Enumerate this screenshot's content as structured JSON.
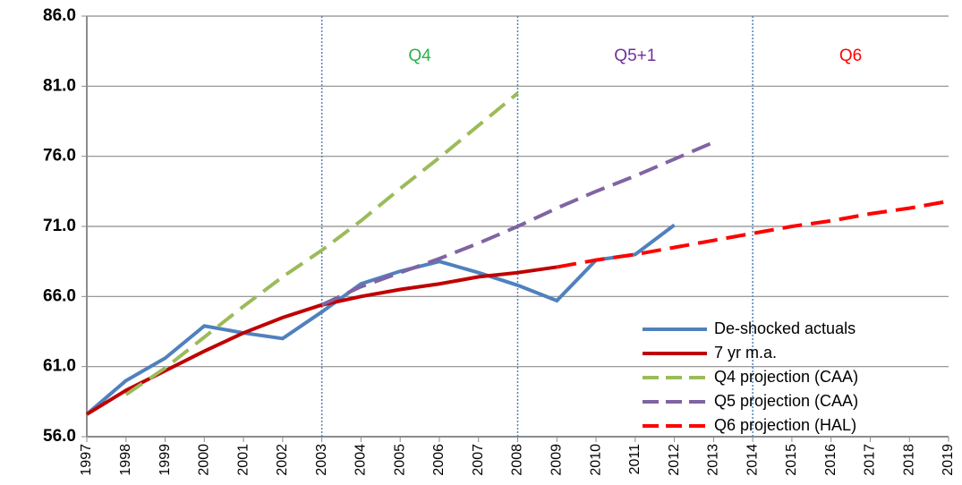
{
  "chart_data": {
    "type": "line",
    "x": [
      1997,
      1998,
      1999,
      2000,
      2001,
      2002,
      2003,
      2004,
      2005,
      2006,
      2007,
      2008,
      2009,
      2010,
      2011,
      2012,
      2013,
      2014,
      2015,
      2016,
      2017,
      2018,
      2019
    ],
    "xlim": [
      1997,
      2019
    ],
    "xticks": [
      1997,
      1998,
      1999,
      2000,
      2001,
      2002,
      2003,
      2004,
      2005,
      2006,
      2007,
      2008,
      2009,
      2010,
      2011,
      2012,
      2013,
      2014,
      2015,
      2016,
      2017,
      2018,
      2019
    ],
    "ylim": [
      56,
      86
    ],
    "yticks": [
      {
        "value": 56,
        "label": "56.0"
      },
      {
        "value": 61,
        "label": "61.0"
      },
      {
        "value": 66,
        "label": "66.0"
      },
      {
        "value": 71,
        "label": "71.0"
      },
      {
        "value": 76,
        "label": "76.0"
      },
      {
        "value": 81,
        "label": "81.0"
      },
      {
        "value": 86,
        "label": "86.0"
      }
    ],
    "grid": true,
    "legend": "lower right",
    "vlines": [
      2003,
      2008,
      2014
    ],
    "annotations": [
      {
        "text": "Q4",
        "color": "#2db04a"
      },
      {
        "text": "Q5+1",
        "color": "#7030a0"
      },
      {
        "text": "Q6",
        "color": "#ff0000"
      }
    ],
    "series": [
      {
        "name": "De-shocked actuals",
        "color": "#4f81bd",
        "dash": false,
        "values": [
          57.6,
          60.0,
          61.6,
          63.9,
          63.4,
          63.0,
          64.9,
          66.9,
          67.8,
          68.5,
          67.7,
          66.8,
          65.7,
          68.6,
          69.0,
          71.1,
          null,
          null,
          null,
          null,
          null,
          null,
          null
        ]
      },
      {
        "name": "7 yr m.a.",
        "color": "#c00000",
        "dash": false,
        "values": [
          57.6,
          59.3,
          60.7,
          62.1,
          63.4,
          64.5,
          65.4,
          66.0,
          66.5,
          66.9,
          67.4,
          67.7,
          68.1,
          null,
          null,
          null,
          null,
          null,
          null,
          null,
          null,
          null,
          null
        ]
      },
      {
        "name": "Q4 projection (CAA)",
        "color": "#9bbb59",
        "dash": true,
        "values": [
          null,
          59.0,
          60.9,
          63.1,
          65.3,
          67.4,
          69.3,
          71.4,
          73.7,
          75.9,
          78.2,
          80.5,
          null,
          null,
          null,
          null,
          null,
          null,
          null,
          null,
          null,
          null,
          null
        ]
      },
      {
        "name": "Q5 projection (CAA)",
        "color": "#8064a2",
        "dash": true,
        "values": [
          null,
          null,
          null,
          null,
          null,
          null,
          65.4,
          66.7,
          67.7,
          68.7,
          69.8,
          71.0,
          72.3,
          73.5,
          74.6,
          75.8,
          77.0,
          null,
          null,
          null,
          null,
          null,
          null
        ]
      },
      {
        "name": "Q6 projection (HAL)",
        "color": "#ff0000",
        "dash": true,
        "values": [
          null,
          null,
          null,
          null,
          null,
          null,
          null,
          null,
          null,
          null,
          null,
          null,
          68.1,
          68.6,
          69.0,
          69.5,
          70.0,
          70.5,
          71.0,
          71.4,
          71.9,
          72.3,
          72.8
        ]
      }
    ]
  }
}
